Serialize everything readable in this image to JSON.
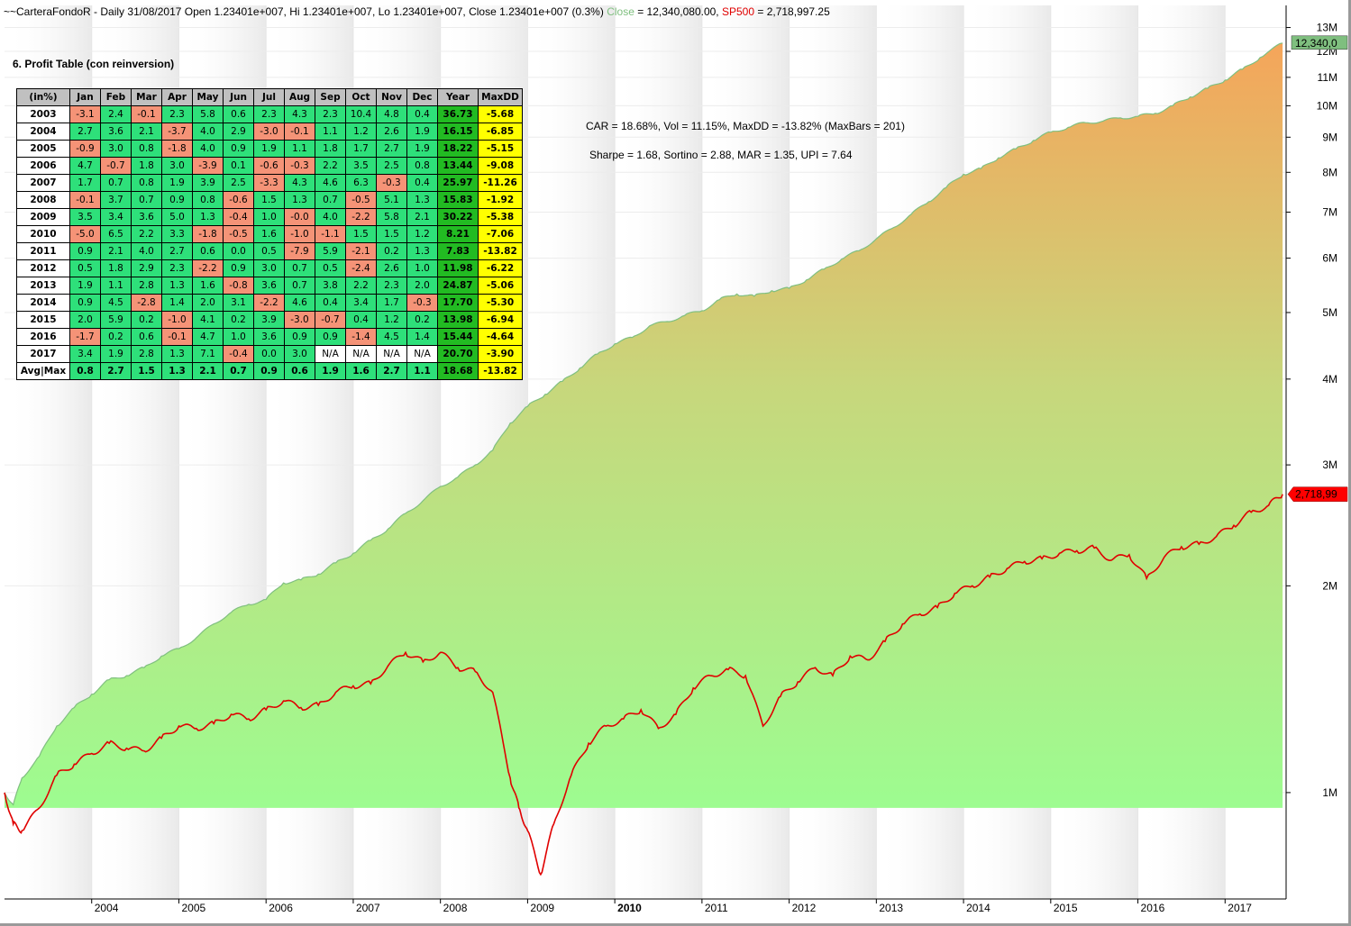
{
  "title_bar": {
    "prefix": "~~CarteraFondoR - Daily 31/08/2017 Open 1.23401e+007, Hi 1.23401e+007, Lo 1.23401e+007, Close 1.23401e+007 (0.3%)",
    "close_label": "Close",
    "close_value": "= 12,340,080.00,",
    "sp_label": "SP500",
    "sp_value": "= 2,718,997.25"
  },
  "table": {
    "title": "6. Profit Table (con reinversion)",
    "headers": [
      "(in%)",
      "Jan",
      "Feb",
      "Mar",
      "Apr",
      "May",
      "Jun",
      "Jul",
      "Aug",
      "Sep",
      "Oct",
      "Nov",
      "Dec",
      "Year",
      "MaxDD"
    ],
    "rows": [
      {
        "year": "2003",
        "months": [
          "-3.1",
          "2.4",
          "-0.1",
          "2.3",
          "5.8",
          "0.6",
          "2.3",
          "4.3",
          "2.3",
          "10.4",
          "4.8",
          "0.4"
        ],
        "total": "36.73",
        "maxdd": "-5.68"
      },
      {
        "year": "2004",
        "months": [
          "2.7",
          "3.6",
          "2.1",
          "-3.7",
          "4.0",
          "2.9",
          "-3.0",
          "-0.1",
          "1.1",
          "1.2",
          "2.6",
          "1.9"
        ],
        "total": "16.15",
        "maxdd": "-6.85"
      },
      {
        "year": "2005",
        "months": [
          "-0.9",
          "3.0",
          "0.8",
          "-1.8",
          "4.0",
          "0.9",
          "1.9",
          "1.1",
          "1.8",
          "1.7",
          "2.7",
          "1.9"
        ],
        "total": "18.22",
        "maxdd": "-5.15"
      },
      {
        "year": "2006",
        "months": [
          "4.7",
          "-0.7",
          "1.8",
          "3.0",
          "-3.9",
          "0.1",
          "-0.6",
          "-0.3",
          "2.2",
          "3.5",
          "2.5",
          "0.8"
        ],
        "total": "13.44",
        "maxdd": "-9.08"
      },
      {
        "year": "2007",
        "months": [
          "1.7",
          "0.7",
          "0.8",
          "1.9",
          "3.9",
          "2.5",
          "-3.3",
          "4.3",
          "4.6",
          "6.3",
          "-0.3",
          "0.4"
        ],
        "total": "25.97",
        "maxdd": "-11.26"
      },
      {
        "year": "2008",
        "months": [
          "-0.1",
          "3.7",
          "0.7",
          "0.9",
          "0.8",
          "-0.6",
          "1.5",
          "1.3",
          "0.7",
          "-0.5",
          "5.1",
          "1.3"
        ],
        "total": "15.83",
        "maxdd": "-1.92"
      },
      {
        "year": "2009",
        "months": [
          "3.5",
          "3.4",
          "3.6",
          "5.0",
          "1.3",
          "-0.4",
          "1.0",
          "-0.0",
          "4.0",
          "-2.2",
          "5.8",
          "2.1"
        ],
        "total": "30.22",
        "maxdd": "-5.38"
      },
      {
        "year": "2010",
        "months": [
          "-5.0",
          "6.5",
          "2.2",
          "3.3",
          "-1.8",
          "-0.5",
          "1.6",
          "-1.0",
          "-1.1",
          "1.5",
          "1.5",
          "1.2"
        ],
        "total": "8.21",
        "maxdd": "-7.06"
      },
      {
        "year": "2011",
        "months": [
          "0.9",
          "2.1",
          "4.0",
          "2.7",
          "0.6",
          "0.0",
          "0.5",
          "-7.9",
          "5.9",
          "-2.1",
          "0.2",
          "1.3"
        ],
        "total": "7.83",
        "maxdd": "-13.82"
      },
      {
        "year": "2012",
        "months": [
          "0.5",
          "1.8",
          "2.9",
          "2.3",
          "-2.2",
          "0.9",
          "3.0",
          "0.7",
          "0.5",
          "-2.4",
          "2.6",
          "1.0"
        ],
        "total": "11.98",
        "maxdd": "-6.22"
      },
      {
        "year": "2013",
        "months": [
          "1.9",
          "1.1",
          "2.8",
          "1.3",
          "1.6",
          "-0.8",
          "3.6",
          "0.7",
          "3.8",
          "2.2",
          "2.3",
          "2.0"
        ],
        "total": "24.87",
        "maxdd": "-5.06"
      },
      {
        "year": "2014",
        "months": [
          "0.9",
          "4.5",
          "-2.8",
          "1.4",
          "2.0",
          "3.1",
          "-2.2",
          "4.6",
          "0.4",
          "3.4",
          "1.7",
          "-0.3"
        ],
        "total": "17.70",
        "maxdd": "-5.30"
      },
      {
        "year": "2015",
        "months": [
          "2.0",
          "5.9",
          "0.2",
          "-1.0",
          "4.1",
          "0.2",
          "3.9",
          "-3.0",
          "-0.7",
          "0.4",
          "1.2",
          "0.2"
        ],
        "total": "13.98",
        "maxdd": "-6.94"
      },
      {
        "year": "2016",
        "months": [
          "-1.7",
          "0.2",
          "0.6",
          "-0.1",
          "4.7",
          "1.0",
          "3.6",
          "0.9",
          "0.9",
          "-1.4",
          "4.5",
          "1.4"
        ],
        "total": "15.44",
        "maxdd": "-4.64"
      },
      {
        "year": "2017",
        "months": [
          "3.4",
          "1.9",
          "2.8",
          "1.3",
          "7.1",
          "-0.4",
          "0.0",
          "3.0",
          "N/A",
          "N/A",
          "N/A",
          "N/A"
        ],
        "total": "20.70",
        "maxdd": "-3.90"
      }
    ],
    "avg_row": {
      "year": "Avg|Max",
      "months": [
        "0.8",
        "2.7",
        "1.5",
        "1.3",
        "2.1",
        "0.7",
        "0.9",
        "0.6",
        "1.9",
        "1.6",
        "2.7",
        "1.1"
      ],
      "total": "18.68",
      "maxdd": "-13.82"
    }
  },
  "stats": {
    "line1": "CAR = 18.68%, Vol = 11.15%, MaxDD = -13.82% (MaxBars = 201)",
    "line2": "Sharpe = 1.68, Sortino = 2.88, MAR = 1.35, UPI = 7.64"
  },
  "chart_data": {
    "type": "area",
    "scale": "log",
    "grid": true,
    "x_ticks": [
      "2004",
      "2005",
      "2006",
      "2007",
      "2008",
      "2009",
      "2010",
      "2011",
      "2012",
      "2013",
      "2014",
      "2015",
      "2016",
      "2017"
    ],
    "y_ticks": [
      "1M",
      "2M",
      "3M",
      "4M",
      "5M",
      "6M",
      "7M",
      "8M",
      "9M",
      "10M",
      "11M",
      "12M",
      "13M"
    ],
    "y_tick_values": [
      1000000,
      2000000,
      3000000,
      4000000,
      5000000,
      6000000,
      7000000,
      8000000,
      9000000,
      10000000,
      11000000,
      12000000,
      13000000
    ],
    "ylim": [
      700000,
      14000000
    ],
    "xlim": [
      2003.0,
      2017.7
    ],
    "series": [
      {
        "name": "CarteraFondoR",
        "label": "12,340,0",
        "color": "#7fbf7f",
        "x": [
          2003.0,
          2003.1,
          2003.2,
          2003.4,
          2003.6,
          2003.8,
          2004.0,
          2004.2,
          2004.4,
          2004.6,
          2004.8,
          2005.0,
          2005.2,
          2005.4,
          2005.6,
          2005.8,
          2006.0,
          2006.2,
          2006.4,
          2006.6,
          2006.8,
          2007.0,
          2007.2,
          2007.4,
          2007.6,
          2007.8,
          2008.0,
          2008.2,
          2008.4,
          2008.6,
          2008.8,
          2009.0,
          2009.2,
          2009.4,
          2009.6,
          2009.8,
          2010.0,
          2010.2,
          2010.4,
          2010.6,
          2010.8,
          2011.0,
          2011.2,
          2011.4,
          2011.6,
          2011.8,
          2012.0,
          2012.2,
          2012.4,
          2012.6,
          2012.8,
          2013.0,
          2013.2,
          2013.4,
          2013.6,
          2013.8,
          2014.0,
          2014.2,
          2014.4,
          2014.6,
          2014.8,
          2015.0,
          2015.2,
          2015.4,
          2015.6,
          2015.8,
          2016.0,
          2016.2,
          2016.4,
          2016.6,
          2016.8,
          2017.0,
          2017.2,
          2017.4,
          2017.66
        ],
        "y": [
          1000000,
          960000,
          1050000,
          1130000,
          1250000,
          1330000,
          1390000,
          1460000,
          1480000,
          1520000,
          1580000,
          1620000,
          1680000,
          1760000,
          1830000,
          1880000,
          1910000,
          2020000,
          2040000,
          2080000,
          2160000,
          2230000,
          2330000,
          2420000,
          2550000,
          2660000,
          2790000,
          2880000,
          3000000,
          3150000,
          3450000,
          3650000,
          3800000,
          3970000,
          4150000,
          4350000,
          4500000,
          4600000,
          4780000,
          4850000,
          4950000,
          5030000,
          5220000,
          5320000,
          5280000,
          5380000,
          5420000,
          5580000,
          5780000,
          5980000,
          6150000,
          6400000,
          6650000,
          6950000,
          7250000,
          7600000,
          7950000,
          8100000,
          8400000,
          8650000,
          8900000,
          9150000,
          9300000,
          9450000,
          9500000,
          9600000,
          9650000,
          9750000,
          10000000,
          10300000,
          10600000,
          10900000,
          11300000,
          11750000,
          12340080
        ]
      },
      {
        "name": "SP500",
        "label": "2,718,99",
        "color": "#e00000",
        "x": [
          2003.0,
          2003.1,
          2003.2,
          2003.4,
          2003.6,
          2003.8,
          2004.0,
          2004.2,
          2004.4,
          2004.6,
          2004.8,
          2005.0,
          2005.2,
          2005.4,
          2005.6,
          2005.8,
          2006.0,
          2006.2,
          2006.4,
          2006.6,
          2006.8,
          2007.0,
          2007.2,
          2007.4,
          2007.6,
          2007.8,
          2008.0,
          2008.2,
          2008.4,
          2008.6,
          2008.8,
          2008.9,
          2009.0,
          2009.15,
          2009.3,
          2009.5,
          2009.7,
          2009.9,
          2010.1,
          2010.3,
          2010.5,
          2010.7,
          2010.9,
          2011.1,
          2011.3,
          2011.5,
          2011.7,
          2011.9,
          2012.1,
          2012.3,
          2012.5,
          2012.7,
          2012.9,
          2013.1,
          2013.3,
          2013.5,
          2013.7,
          2013.9,
          2014.1,
          2014.3,
          2014.5,
          2014.7,
          2014.9,
          2015.1,
          2015.3,
          2015.5,
          2015.7,
          2015.9,
          2016.1,
          2016.3,
          2016.5,
          2016.7,
          2016.9,
          2017.1,
          2017.3,
          2017.5,
          2017.66
        ],
        "y": [
          1000000,
          900000,
          880000,
          950000,
          1060000,
          1100000,
          1140000,
          1180000,
          1160000,
          1150000,
          1200000,
          1250000,
          1240000,
          1260000,
          1300000,
          1280000,
          1320000,
          1360000,
          1330000,
          1340000,
          1400000,
          1430000,
          1440000,
          1530000,
          1600000,
          1550000,
          1600000,
          1520000,
          1500000,
          1400000,
          1050000,
          950000,
          880000,
          760000,
          900000,
          1060000,
          1180000,
          1250000,
          1280000,
          1320000,
          1240000,
          1300000,
          1420000,
          1480000,
          1510000,
          1480000,
          1250000,
          1380000,
          1450000,
          1520000,
          1480000,
          1580000,
          1560000,
          1660000,
          1760000,
          1820000,
          1860000,
          1950000,
          2000000,
          2060000,
          2120000,
          2170000,
          2190000,
          2230000,
          2250000,
          2270000,
          2180000,
          2220000,
          2050000,
          2200000,
          2280000,
          2300000,
          2360000,
          2450000,
          2560000,
          2620000,
          2718997
        ]
      }
    ]
  }
}
